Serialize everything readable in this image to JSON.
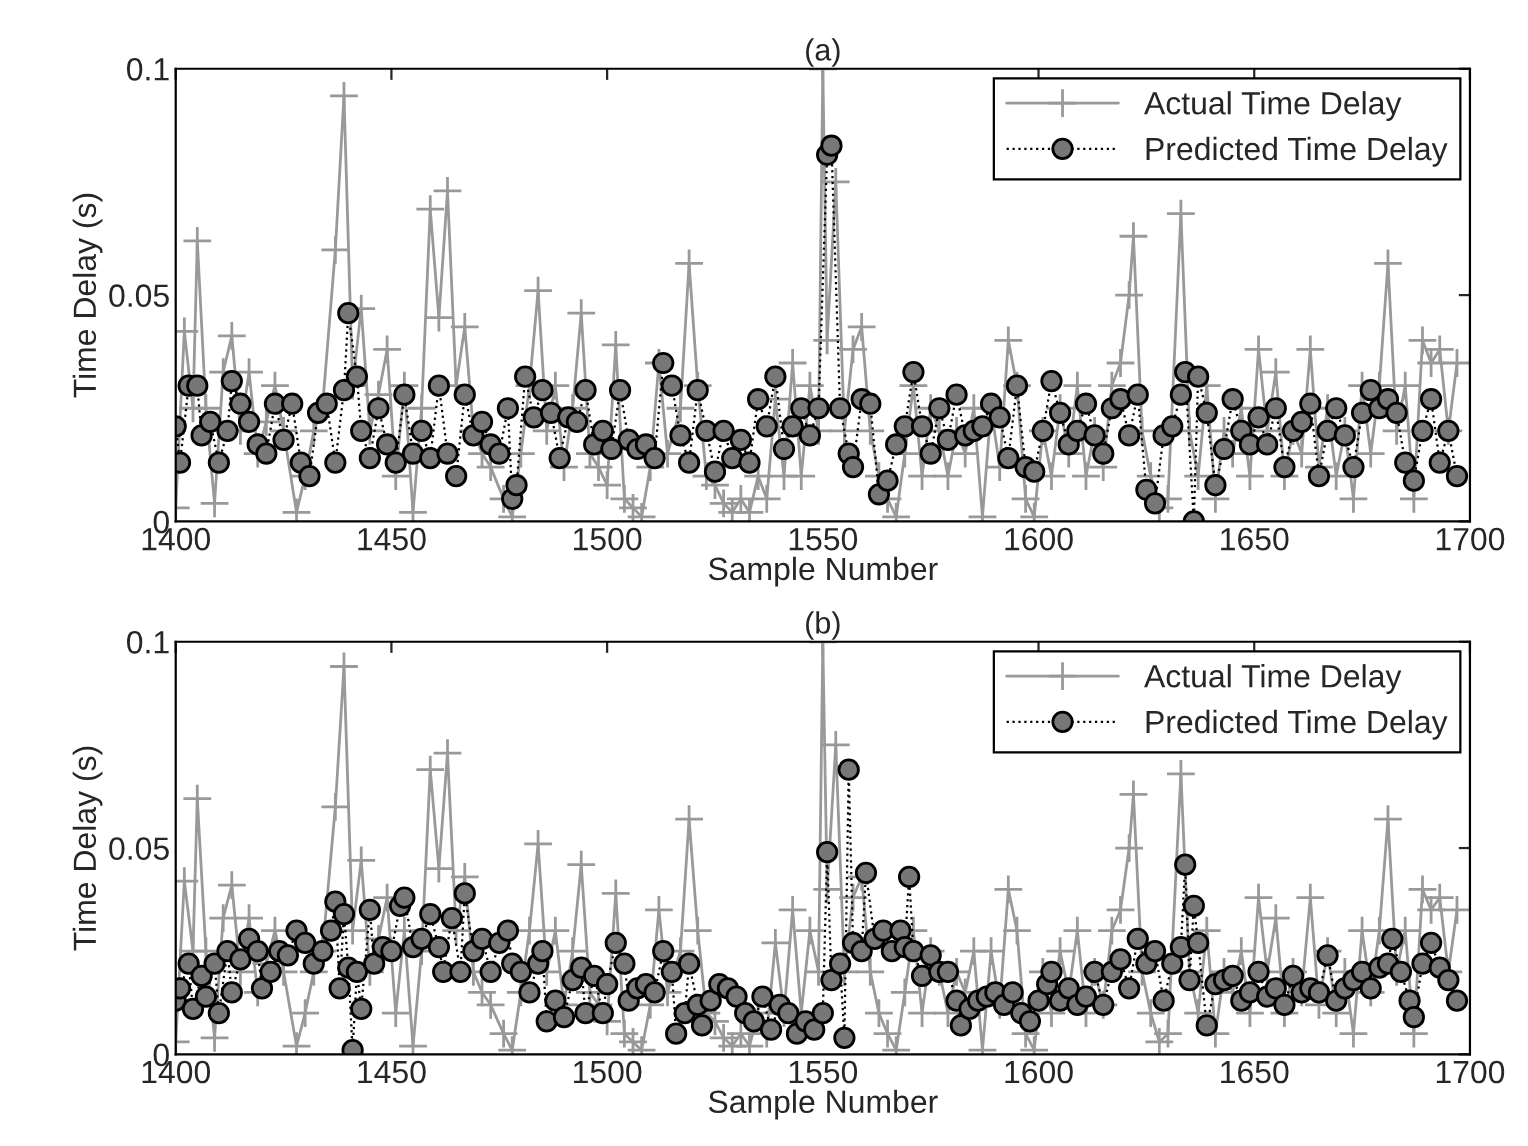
{
  "chart_data": [
    {
      "type": "line",
      "title": "(a)",
      "xlabel": "Sample Number",
      "ylabel": "Time Delay (s)",
      "xlim": [
        1400,
        1700
      ],
      "xticks": [
        1400,
        1450,
        1500,
        1550,
        1600,
        1650,
        1700
      ],
      "ylim": [
        0,
        0.1
      ],
      "yticks": [
        0,
        0.05,
        0.1
      ],
      "grid": false,
      "legend": "top right",
      "series": [
        {
          "name": "Actual Time Delay",
          "color": "#999999",
          "marker": "cross",
          "line_style": "solid",
          "x": [
            1400,
            1402,
            1404,
            1405,
            1407,
            1409,
            1411,
            1413,
            1415,
            1417,
            1419,
            1421,
            1423,
            1425,
            1428,
            1430,
            1432,
            1434,
            1437,
            1439,
            1441,
            1443,
            1445,
            1447,
            1449,
            1451,
            1453,
            1455,
            1457,
            1459,
            1461,
            1463,
            1465,
            1467,
            1469,
            1471,
            1473,
            1476,
            1478,
            1480,
            1482,
            1484,
            1486,
            1488,
            1490,
            1492,
            1494,
            1496,
            1498,
            1500,
            1502,
            1504,
            1506,
            1508,
            1510,
            1512,
            1514,
            1517,
            1519,
            1521,
            1523,
            1525,
            1527,
            1529,
            1531,
            1533,
            1535,
            1537,
            1539,
            1541,
            1543,
            1545,
            1547,
            1549,
            1550,
            1551,
            1553,
            1555,
            1557,
            1559,
            1561,
            1563,
            1565,
            1567,
            1569,
            1571,
            1573,
            1575,
            1577,
            1579,
            1581,
            1583,
            1585,
            1587,
            1589,
            1591,
            1593,
            1595,
            1597,
            1599,
            1601,
            1603,
            1605,
            1607,
            1609,
            1611,
            1613,
            1615,
            1617,
            1619,
            1621,
            1622,
            1624,
            1626,
            1628,
            1630,
            1633,
            1635,
            1637,
            1639,
            1641,
            1643,
            1645,
            1647,
            1649,
            1651,
            1653,
            1655,
            1657,
            1659,
            1661,
            1663,
            1665,
            1667,
            1669,
            1671,
            1673,
            1675,
            1677,
            1679,
            1681,
            1683,
            1685,
            1687,
            1689,
            1691,
            1693,
            1695,
            1697
          ],
          "values": [
            0.003,
            0.042,
            0.025,
            0.062,
            0.025,
            0.004,
            0.033,
            0.041,
            0.02,
            0.033,
            0.015,
            0.022,
            0.03,
            0.02,
            0.002,
            0.01,
            0.02,
            0.025,
            0.06,
            0.094,
            0.03,
            0.047,
            0.02,
            0.028,
            0.038,
            0.01,
            0.03,
            0.002,
            0.025,
            0.069,
            0.045,
            0.073,
            0.03,
            0.043,
            0.02,
            0.015,
            0.012,
            0.005,
            0.001,
            0.015,
            0.03,
            0.051,
            0.02,
            0.03,
            0.012,
            0.025,
            0.046,
            0.015,
            0.012,
            0.008,
            0.039,
            0.005,
            0.003,
            0.001,
            0.012,
            0.035,
            0.015,
            0.025,
            0.057,
            0.03,
            0.01,
            0.008,
            0.004,
            0.002,
            0.005,
            0.002,
            0.01,
            0.005,
            0.027,
            0.01,
            0.035,
            0.01,
            0.03,
            0.02,
            0.1,
            0.04,
            0.075,
            0.02,
            0.038,
            0.043,
            0.02,
            0.01,
            0.005,
            0.001,
            0.015,
            0.03,
            0.01,
            0.025,
            0.02,
            0.01,
            0.02,
            0.015,
            0.025,
            0.001,
            0.025,
            0.012,
            0.04,
            0.03,
            0.005,
            0.001,
            0.02,
            0.01,
            0.025,
            0.015,
            0.03,
            0.01,
            0.02,
            0.012,
            0.03,
            0.035,
            0.05,
            0.063,
            0.02,
            0.01,
            0.003,
            0.005,
            0.068,
            0.02,
            0.01,
            0.03,
            0.005,
            0.02,
            0.015,
            0.025,
            0.01,
            0.038,
            0.02,
            0.033,
            0.01,
            0.02,
            0.015,
            0.038,
            0.012,
            0.025,
            0.01,
            0.02,
            0.005,
            0.03,
            0.015,
            0.03,
            0.057,
            0.02,
            0.03,
            0.005,
            0.04,
            0.035,
            0.038,
            0.02,
            0.035
          ]
        },
        {
          "name": "Predicted Time Delay",
          "color": "#777777",
          "marker": "circle",
          "line_style": "dotted",
          "x": [
            1400,
            1401,
            1403,
            1405,
            1406,
            1408,
            1410,
            1412,
            1413,
            1415,
            1417,
            1419,
            1421,
            1423,
            1425,
            1427,
            1429,
            1431,
            1433,
            1435,
            1437,
            1439,
            1440,
            1442,
            1443,
            1445,
            1447,
            1449,
            1451,
            1453,
            1455,
            1457,
            1459,
            1461,
            1463,
            1465,
            1467,
            1469,
            1471,
            1473,
            1475,
            1477,
            1478,
            1479,
            1481,
            1483,
            1485,
            1487,
            1489,
            1491,
            1493,
            1495,
            1497,
            1499,
            1501,
            1503,
            1505,
            1507,
            1509,
            1511,
            1513,
            1515,
            1517,
            1519,
            1521,
            1523,
            1525,
            1527,
            1529,
            1531,
            1533,
            1535,
            1537,
            1539,
            1541,
            1543,
            1545,
            1547,
            1549,
            1551,
            1552,
            1554,
            1556,
            1557,
            1559,
            1561,
            1563,
            1565,
            1567,
            1569,
            1571,
            1573,
            1575,
            1577,
            1579,
            1581,
            1583,
            1585,
            1587,
            1589,
            1591,
            1593,
            1595,
            1597,
            1599,
            1601,
            1603,
            1605,
            1607,
            1609,
            1611,
            1613,
            1615,
            1617,
            1619,
            1621,
            1623,
            1625,
            1627,
            1629,
            1631,
            1633,
            1634,
            1636,
            1637,
            1639,
            1641,
            1643,
            1645,
            1647,
            1649,
            1651,
            1653,
            1655,
            1657,
            1659,
            1661,
            1663,
            1665,
            1667,
            1669,
            1671,
            1673,
            1675,
            1677,
            1679,
            1681,
            1683,
            1685,
            1687,
            1689,
            1691,
            1693,
            1695,
            1697
          ],
          "values": [
            0.021,
            0.013,
            0.03,
            0.03,
            0.019,
            0.022,
            0.013,
            0.02,
            0.031,
            0.026,
            0.022,
            0.017,
            0.015,
            0.026,
            0.018,
            0.026,
            0.013,
            0.01,
            0.024,
            0.026,
            0.013,
            0.029,
            0.046,
            0.032,
            0.02,
            0.014,
            0.025,
            0.017,
            0.013,
            0.028,
            0.015,
            0.02,
            0.014,
            0.03,
            0.015,
            0.01,
            0.028,
            0.019,
            0.022,
            0.017,
            0.015,
            0.025,
            0.005,
            0.008,
            0.032,
            0.023,
            0.029,
            0.024,
            0.014,
            0.023,
            0.022,
            0.029,
            0.017,
            0.02,
            0.016,
            0.029,
            0.018,
            0.016,
            0.017,
            0.014,
            0.035,
            0.03,
            0.019,
            0.013,
            0.029,
            0.02,
            0.011,
            0.02,
            0.014,
            0.018,
            0.013,
            0.027,
            0.021,
            0.032,
            0.016,
            0.021,
            0.025,
            0.019,
            0.025,
            0.081,
            0.083,
            0.025,
            0.015,
            0.012,
            0.027,
            0.026,
            0.006,
            0.009,
            0.017,
            0.021,
            0.033,
            0.021,
            0.015,
            0.025,
            0.018,
            0.028,
            0.019,
            0.02,
            0.021,
            0.026,
            0.023,
            0.014,
            0.03,
            0.012,
            0.011,
            0.02,
            0.031,
            0.024,
            0.017,
            0.02,
            0.026,
            0.019,
            0.015,
            0.025,
            0.027,
            0.019,
            0.028,
            0.007,
            0.004,
            0.019,
            0.021,
            0.028,
            0.033,
            0.0,
            0.032,
            0.024,
            0.008,
            0.016,
            0.027,
            0.02,
            0.017,
            0.023,
            0.017,
            0.025,
            0.012,
            0.02,
            0.022,
            0.026,
            0.01,
            0.02,
            0.025,
            0.019,
            0.012,
            0.024,
            0.029,
            0.025,
            0.027,
            0.024,
            0.013,
            0.009,
            0.02,
            0.027,
            0.013,
            0.02,
            0.01
          ]
        }
      ]
    },
    {
      "type": "line",
      "title": "(b)",
      "xlabel": "Sample Number",
      "ylabel": "Time Delay (s)",
      "xlim": [
        1400,
        1700
      ],
      "xticks": [
        1400,
        1450,
        1500,
        1550,
        1600,
        1650,
        1700
      ],
      "ylim": [
        0,
        0.1
      ],
      "yticks": [
        0,
        0.05,
        0.1
      ],
      "grid": false,
      "legend": "top right",
      "series": [
        {
          "name": "Actual Time Delay",
          "color": "#999999",
          "marker": "cross",
          "line_style": "solid",
          "x": [
            1400,
            1402,
            1404,
            1405,
            1407,
            1409,
            1411,
            1413,
            1415,
            1417,
            1419,
            1421,
            1423,
            1425,
            1428,
            1430,
            1432,
            1434,
            1437,
            1439,
            1441,
            1443,
            1445,
            1447,
            1449,
            1451,
            1453,
            1455,
            1457,
            1459,
            1461,
            1463,
            1465,
            1467,
            1469,
            1471,
            1473,
            1476,
            1478,
            1480,
            1482,
            1484,
            1486,
            1488,
            1490,
            1492,
            1494,
            1496,
            1498,
            1500,
            1502,
            1504,
            1506,
            1508,
            1510,
            1512,
            1514,
            1517,
            1519,
            1521,
            1523,
            1525,
            1527,
            1529,
            1531,
            1533,
            1535,
            1537,
            1539,
            1541,
            1543,
            1545,
            1547,
            1549,
            1550,
            1551,
            1553,
            1555,
            1557,
            1559,
            1561,
            1563,
            1565,
            1567,
            1569,
            1571,
            1573,
            1575,
            1577,
            1579,
            1581,
            1583,
            1585,
            1587,
            1589,
            1591,
            1593,
            1595,
            1597,
            1599,
            1601,
            1603,
            1605,
            1607,
            1609,
            1611,
            1613,
            1615,
            1617,
            1619,
            1621,
            1622,
            1624,
            1626,
            1628,
            1630,
            1633,
            1635,
            1637,
            1639,
            1641,
            1643,
            1645,
            1647,
            1649,
            1651,
            1653,
            1655,
            1657,
            1659,
            1661,
            1663,
            1665,
            1667,
            1669,
            1671,
            1673,
            1675,
            1677,
            1679,
            1681,
            1683,
            1685,
            1687,
            1689,
            1691,
            1693,
            1695,
            1697
          ],
          "values": [
            0.003,
            0.042,
            0.025,
            0.062,
            0.025,
            0.004,
            0.033,
            0.041,
            0.02,
            0.033,
            0.015,
            0.022,
            0.03,
            0.02,
            0.002,
            0.01,
            0.02,
            0.025,
            0.06,
            0.094,
            0.03,
            0.047,
            0.02,
            0.028,
            0.038,
            0.01,
            0.03,
            0.002,
            0.025,
            0.069,
            0.045,
            0.073,
            0.03,
            0.043,
            0.02,
            0.015,
            0.012,
            0.005,
            0.001,
            0.015,
            0.03,
            0.051,
            0.02,
            0.03,
            0.012,
            0.025,
            0.046,
            0.015,
            0.012,
            0.008,
            0.039,
            0.005,
            0.003,
            0.001,
            0.012,
            0.035,
            0.015,
            0.025,
            0.057,
            0.03,
            0.01,
            0.008,
            0.004,
            0.002,
            0.005,
            0.002,
            0.01,
            0.005,
            0.027,
            0.01,
            0.035,
            0.01,
            0.03,
            0.02,
            0.1,
            0.04,
            0.075,
            0.02,
            0.038,
            0.043,
            0.02,
            0.01,
            0.005,
            0.001,
            0.015,
            0.03,
            0.01,
            0.025,
            0.02,
            0.01,
            0.02,
            0.015,
            0.025,
            0.001,
            0.025,
            0.012,
            0.04,
            0.03,
            0.005,
            0.001,
            0.02,
            0.01,
            0.025,
            0.015,
            0.03,
            0.01,
            0.02,
            0.012,
            0.03,
            0.035,
            0.05,
            0.063,
            0.02,
            0.01,
            0.003,
            0.005,
            0.068,
            0.02,
            0.01,
            0.03,
            0.005,
            0.02,
            0.015,
            0.025,
            0.01,
            0.038,
            0.02,
            0.033,
            0.01,
            0.02,
            0.015,
            0.038,
            0.012,
            0.025,
            0.01,
            0.02,
            0.005,
            0.03,
            0.015,
            0.03,
            0.057,
            0.02,
            0.03,
            0.005,
            0.04,
            0.035,
            0.038,
            0.02,
            0.035
          ]
        },
        {
          "name": "Predicted Time Delay",
          "color": "#777777",
          "marker": "circle",
          "line_style": "dotted",
          "x": [
            1400,
            1401,
            1403,
            1404,
            1406,
            1407,
            1409,
            1410,
            1412,
            1413,
            1415,
            1417,
            1419,
            1420,
            1422,
            1424,
            1426,
            1428,
            1430,
            1432,
            1434,
            1436,
            1437,
            1438,
            1439,
            1440,
            1441,
            1442,
            1443,
            1445,
            1446,
            1448,
            1450,
            1452,
            1453,
            1455,
            1457,
            1459,
            1461,
            1462,
            1464,
            1466,
            1467,
            1469,
            1471,
            1473,
            1475,
            1477,
            1478,
            1480,
            1482,
            1484,
            1485,
            1486,
            1488,
            1490,
            1492,
            1494,
            1495,
            1497,
            1499,
            1500,
            1502,
            1504,
            1505,
            1507,
            1509,
            1511,
            1513,
            1515,
            1516,
            1518,
            1519,
            1521,
            1522,
            1524,
            1526,
            1528,
            1530,
            1532,
            1534,
            1536,
            1538,
            1540,
            1542,
            1544,
            1546,
            1548,
            1550,
            1551,
            1552,
            1554,
            1555,
            1556,
            1557,
            1559,
            1560,
            1562,
            1564,
            1566,
            1568,
            1569,
            1570,
            1571,
            1573,
            1575,
            1577,
            1579,
            1581,
            1582,
            1584,
            1586,
            1588,
            1590,
            1592,
            1594,
            1596,
            1598,
            1600,
            1602,
            1603,
            1605,
            1607,
            1609,
            1611,
            1613,
            1615,
            1617,
            1619,
            1621,
            1623,
            1625,
            1627,
            1629,
            1631,
            1633,
            1634,
            1635,
            1636,
            1637,
            1639,
            1641,
            1643,
            1645,
            1647,
            1649,
            1651,
            1653,
            1655,
            1657,
            1659,
            1661,
            1663,
            1665,
            1667,
            1669,
            1671,
            1673,
            1675,
            1677,
            1679,
            1681,
            1682,
            1684,
            1686,
            1687,
            1689,
            1691,
            1693,
            1695,
            1697
          ],
          "values": [
            0.013,
            0.016,
            0.022,
            0.011,
            0.019,
            0.014,
            0.022,
            0.01,
            0.025,
            0.015,
            0.023,
            0.028,
            0.025,
            0.016,
            0.02,
            0.025,
            0.024,
            0.03,
            0.027,
            0.022,
            0.025,
            0.03,
            0.037,
            0.016,
            0.034,
            0.021,
            0.001,
            0.02,
            0.011,
            0.035,
            0.022,
            0.026,
            0.025,
            0.036,
            0.038,
            0.026,
            0.028,
            0.034,
            0.026,
            0.02,
            0.033,
            0.02,
            0.039,
            0.025,
            0.028,
            0.02,
            0.027,
            0.03,
            0.022,
            0.02,
            0.015,
            0.022,
            0.025,
            0.008,
            0.013,
            0.009,
            0.018,
            0.021,
            0.01,
            0.019,
            0.01,
            0.017,
            0.027,
            0.022,
            0.013,
            0.016,
            0.017,
            0.015,
            0.025,
            0.02,
            0.005,
            0.01,
            0.022,
            0.012,
            0.007,
            0.013,
            0.017,
            0.016,
            0.014,
            0.01,
            0.008,
            0.014,
            0.006,
            0.012,
            0.01,
            0.005,
            0.008,
            0.006,
            0.01,
            0.049,
            0.018,
            0.022,
            0.004,
            0.069,
            0.027,
            0.025,
            0.044,
            0.028,
            0.03,
            0.025,
            0.03,
            0.026,
            0.043,
            0.025,
            0.019,
            0.024,
            0.02,
            0.02,
            0.013,
            0.007,
            0.011,
            0.013,
            0.014,
            0.015,
            0.012,
            0.015,
            0.01,
            0.008,
            0.013,
            0.017,
            0.02,
            0.013,
            0.016,
            0.012,
            0.014,
            0.02,
            0.012,
            0.02,
            0.023,
            0.016,
            0.028,
            0.022,
            0.025,
            0.013,
            0.022,
            0.026,
            0.046,
            0.018,
            0.036,
            0.027,
            0.007,
            0.017,
            0.018,
            0.019,
            0.013,
            0.015,
            0.02,
            0.014,
            0.016,
            0.012,
            0.019,
            0.015,
            0.016,
            0.015,
            0.024,
            0.013,
            0.016,
            0.018,
            0.02,
            0.016,
            0.021,
            0.022,
            0.028,
            0.02,
            0.013,
            0.009,
            0.022,
            0.027,
            0.021,
            0.018,
            0.013
          ]
        }
      ]
    }
  ]
}
